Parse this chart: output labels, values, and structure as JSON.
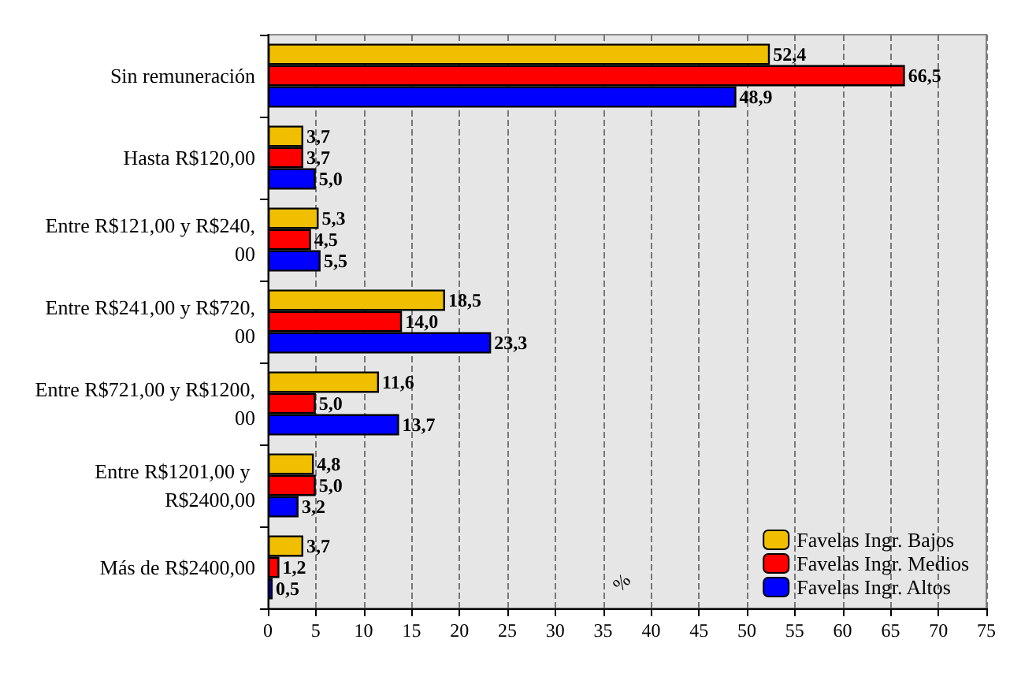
{
  "chart_data": {
    "type": "bar",
    "orientation": "horizontal",
    "xlabel": "%",
    "categories": [
      "Sin remuneración",
      "Hasta R$120,00",
      "Entre R$121,00 y R$240,00",
      "Entre R$241,00 y R$720,00",
      "Entre R$721,00 y R$1200,00",
      "Entre R$1201,00 y R$2400,00",
      "Más de R$2400,00"
    ],
    "series": [
      {
        "name": "Favelas Ingr. Bajos",
        "color": "#f0c000",
        "values": [
          52.4,
          3.7,
          5.3,
          18.5,
          11.6,
          4.8,
          3.7
        ],
        "value_labels": [
          "52,4",
          "3,7",
          "5,3",
          "18,5",
          "11,6",
          "4,8",
          "3,7"
        ]
      },
      {
        "name": "Favelas Ingr. Medios",
        "color": "#ff0000",
        "values": [
          66.5,
          3.7,
          4.5,
          14.0,
          5.0,
          5.0,
          1.2
        ],
        "value_labels": [
          "66,5",
          "3,7",
          "4,5",
          "14,0",
          "5,0",
          "5,0",
          "1,2"
        ]
      },
      {
        "name": "Favelas Ingr. Altos",
        "color": "#0000ff",
        "values": [
          48.9,
          5.0,
          5.5,
          23.3,
          13.7,
          3.2,
          0.5
        ],
        "value_labels": [
          "48,9",
          "5,0",
          "5,5",
          "23,3",
          "13,7",
          "3,2",
          "0,5"
        ]
      }
    ],
    "xlim": [
      0,
      75
    ],
    "xticks": [
      0,
      5,
      10,
      15,
      20,
      25,
      30,
      35,
      40,
      45,
      50,
      55,
      60,
      65,
      70,
      75
    ],
    "grid": "x",
    "legend": "bottom right"
  }
}
